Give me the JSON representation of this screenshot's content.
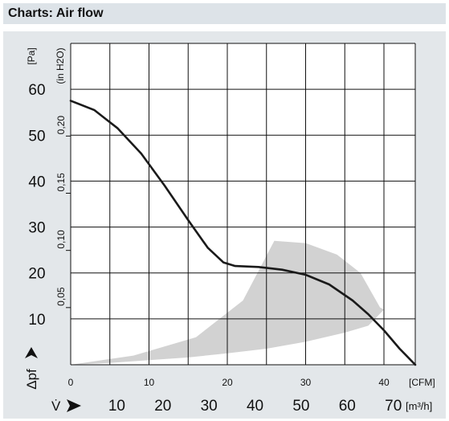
{
  "header": {
    "title": "Charts: Air flow"
  },
  "chart_data": {
    "type": "line",
    "title": "",
    "y_unit_label": "[Pa]",
    "y_alt_unit_label": "(in H2O)",
    "y_symbol_label": "Δpf",
    "x_unit_label": "[CFM]",
    "x_alt_unit_label": "[m³/h]",
    "x_symbol_label": "V̇",
    "xlim": [
      0,
      44
    ],
    "ylim": [
      0,
      70
    ],
    "grid": true,
    "x_ticks": [
      0,
      10,
      20,
      30,
      40
    ],
    "y_ticks_pa": [
      10,
      20,
      30,
      40,
      50,
      60
    ],
    "y_ticks_inh2o": [
      "0,05",
      "0,10",
      "0,15",
      "0,20"
    ],
    "y_ticks_inh2o_values": [
      0.05,
      0.1,
      0.15,
      0.2
    ],
    "x_ticks_m3h": [
      10,
      20,
      30,
      40,
      50,
      60,
      70
    ],
    "series": [
      {
        "color": "#1a1a1a",
        "x": [
          0,
          3,
          6,
          9,
          12,
          15,
          17.5,
          19.5,
          21,
          24,
          27,
          30,
          33,
          36,
          38,
          40,
          42,
          44
        ],
        "y": [
          57.5,
          55.5,
          51.5,
          46,
          39,
          31.5,
          25.5,
          22.3,
          21.5,
          21.3,
          20.7,
          19.6,
          17.5,
          14,
          11,
          7.5,
          3.5,
          0
        ]
      }
    ],
    "operating_region": {
      "color": "#d2d2d2",
      "x": [
        0,
        8,
        16,
        22,
        26,
        30,
        34,
        37,
        39.5,
        40,
        38,
        35,
        30,
        25,
        20,
        15,
        10,
        5,
        0
      ],
      "y": [
        0,
        2,
        6,
        14,
        27,
        26.5,
        24,
        20,
        12.5,
        12,
        8.5,
        7,
        5,
        3.5,
        2.5,
        1.6,
        1,
        0.4,
        0
      ]
    }
  }
}
